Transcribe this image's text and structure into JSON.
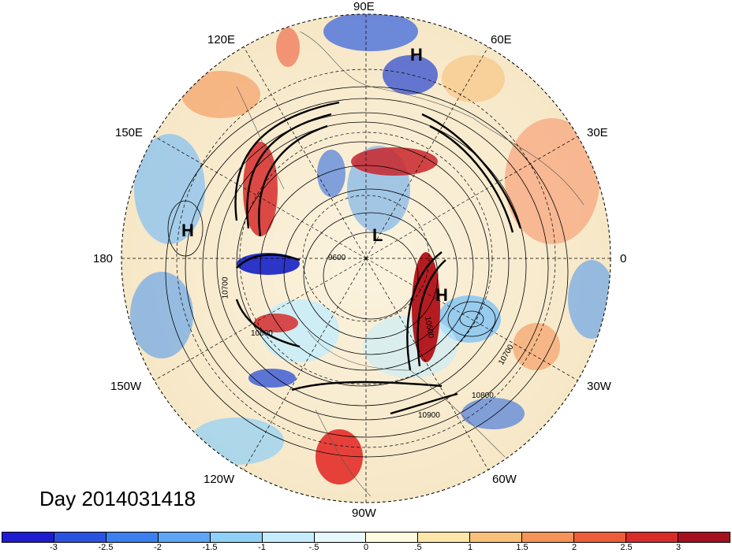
{
  "map": {
    "date_label": "Day 2014031418",
    "longitude_labels": [
      "90E",
      "120E",
      "60E",
      "150E",
      "30E",
      "180",
      "0",
      "150W",
      "30W",
      "120W",
      "60W",
      "90W"
    ],
    "pressure_centers": [
      "H",
      "H",
      "L",
      "H"
    ],
    "contour_labels": [
      "10700",
      "9600",
      "10500",
      "10700",
      "10800",
      "10900",
      "10600"
    ]
  },
  "colorbar": {
    "colors": [
      "#1f1bd0",
      "#2a52e0",
      "#3c7ff0",
      "#5ea6f5",
      "#8fd0f8",
      "#c4ecfb",
      "#e8f9fd",
      "#fffbe0",
      "#fde7a8",
      "#f9c07a",
      "#f59456",
      "#ef5c3a",
      "#d92a2a",
      "#a50f20"
    ],
    "ticks": [
      "-3",
      "-2.5",
      "-2",
      "-1.5",
      "-1",
      "-.5",
      "0",
      ".5",
      "1",
      "1.5",
      "2",
      "2.5",
      "3"
    ]
  }
}
